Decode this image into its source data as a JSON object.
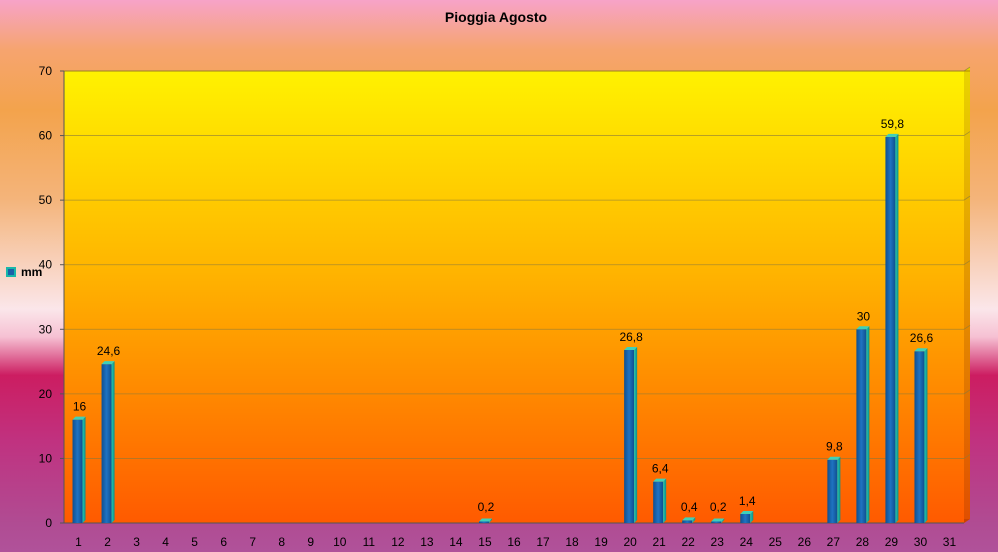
{
  "chart_data": {
    "type": "bar",
    "title": "Pioggia Agosto",
    "xlabel": "",
    "ylabel": "",
    "categories": [
      "1",
      "2",
      "3",
      "4",
      "5",
      "6",
      "7",
      "8",
      "9",
      "10",
      "11",
      "12",
      "13",
      "14",
      "15",
      "16",
      "17",
      "18",
      "19",
      "20",
      "21",
      "22",
      "23",
      "24",
      "25",
      "26",
      "27",
      "28",
      "29",
      "30",
      "31"
    ],
    "series": [
      {
        "name": "mm",
        "values": [
          16,
          24.6,
          0,
          0,
          0,
          0,
          0,
          0,
          0,
          0,
          0,
          0,
          0,
          0,
          0.2,
          0,
          0,
          0,
          0,
          26.8,
          6.4,
          0.4,
          0.2,
          1.4,
          0,
          0,
          9.8,
          30,
          59.8,
          26.6,
          0
        ],
        "labels": [
          "16",
          "24,6",
          "",
          "",
          "",
          "",
          "",
          "",
          "",
          "",
          "",
          "",
          "",
          "",
          "0,2",
          "",
          "",
          "",
          "",
          "26,8",
          "6,4",
          "0,4",
          "0,2",
          "1,4",
          "",
          "",
          "9,8",
          "30",
          "59,8",
          "26,6",
          ""
        ]
      }
    ],
    "ylim": [
      0,
      70
    ],
    "yticks": [
      "0",
      "10",
      "20",
      "30",
      "40",
      "50",
      "60",
      "70"
    ],
    "grid": true,
    "legend_position": "left",
    "colors": {
      "bar_front": "#1a62a8",
      "bar_side": "#19b7a9",
      "bar_top": "#40d0b8",
      "plot_top": "#fff200",
      "plot_bottom": "#ff5a00",
      "gridline": "#8a7a3a"
    }
  }
}
